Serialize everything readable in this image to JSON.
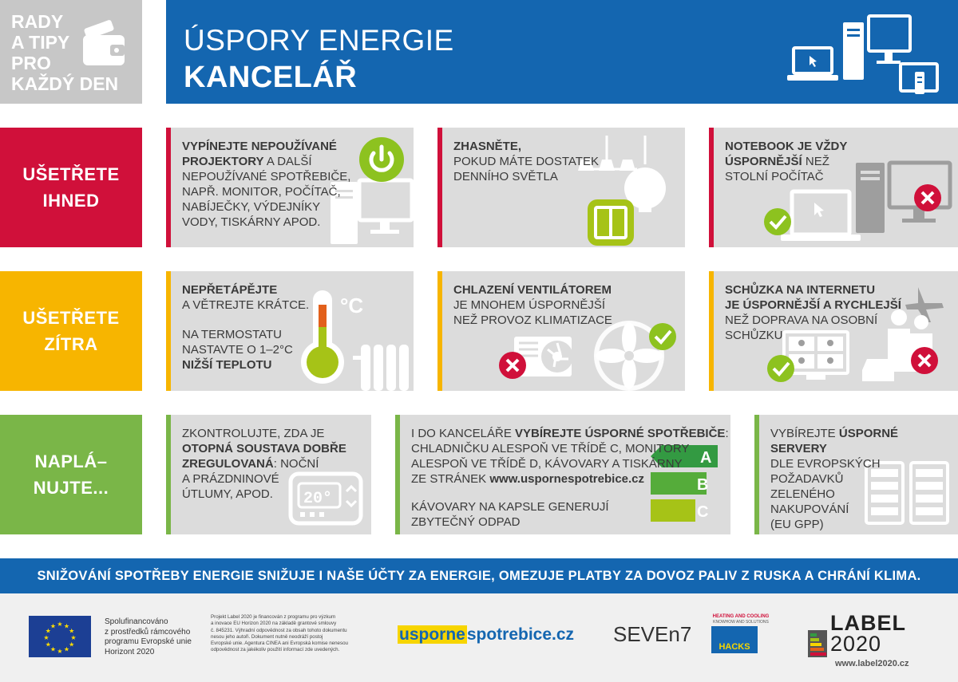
{
  "header": {
    "tagline": [
      "RADY",
      "A TIPY",
      "PRO",
      "KAŽDÝ DEN"
    ],
    "title_line1": "ÚSPORY ENERGIE",
    "title_line2": "KANCELÁŘ"
  },
  "rows": [
    {
      "label_line1": "UŠETŘETE",
      "label_line2": "IHNED"
    },
    {
      "label_line1": "UŠETŘETE",
      "label_line2": "ZÍTRA"
    },
    {
      "label_line1": "NAPLÁ–",
      "label_line2": "NUJTE..."
    }
  ],
  "cards": {
    "c1": {
      "bold1": "VYPÍNEJTE NEPOUŽÍVANÉ",
      "bold2": "PROJEKTORY",
      "rest2": " A DALŠÍ",
      "l3": "NEPOUŽÍVANÉ SPOTŘEBIČE,",
      "l4": "NAPŘ. MONITOR, POČÍTAČ,",
      "l5": "NABÍJEČKY, VÝDEJNÍKY",
      "l6": "VODY, TISKÁRNY APOD."
    },
    "c2": {
      "bold1": "ZHASNĚTE,",
      "l2": "POKUD MÁTE DOSTATEK",
      "l3": "DENNÍHO SVĚTLA"
    },
    "c3": {
      "bold1": "NOTEBOOK JE VŽDY",
      "bold2": "ÚSPORNĚJŠÍ",
      "rest2": " NEŽ",
      "l3": "STOLNÍ POČÍTAČ"
    },
    "c4": {
      "bold1": "NEPŘETÁPĚJTE",
      "l2": "A VĚTREJTE KRÁTCE.",
      "l3": "NA TERMOSTATU",
      "l4": "NASTAVTE O 1–2°C",
      "bold5": "NIŽŠÍ TEPLOTU",
      "unit": "°C"
    },
    "c5": {
      "bold1": "CHLAZENÍ VENTILÁTOREM",
      "l2": "JE MNOHEM ÚSPORNĚJŠÍ",
      "l3": "NEŽ PROVOZ KLIMATIZACE"
    },
    "c6": {
      "bold1": "SCHŮZKA NA INTERNETU",
      "bold2": "JE ÚSPORNĚJŠÍ A RYCHLEJŠÍ",
      "l3": "NEŽ DOPRAVA NA OSOBNÍ",
      "l4": "SCHŮZKU"
    },
    "c7": {
      "l1": "ZKONTROLUJTE, ZDA JE",
      "bold2": "OTOPNÁ SOUSTAVA DOBŘE",
      "bold3": "ZREGULOVANÁ",
      "rest3": ": NOČNÍ",
      "l4": "A PRÁZDNINOVÉ",
      "l5": "ÚTLUMY, APOD.",
      "display": "20°"
    },
    "c8": {
      "l1a": "I DO KANCELÁŘE ",
      "bold1": "VYBÍREJTE ÚSPORNÉ SPOTŘEBIČE",
      "l1b": ":",
      "l2": "CHLADNIČKU ALESPOŇ VE TŘÍDĚ C, MONITORY",
      "l3": "ALESPOŇ VE TŘÍDĚ D, KÁVOVARY A TISKÁRNY",
      "l4a": "ZE STRÁNEK ",
      "bold4": "www.uspornespotrebice.cz",
      "l5": "KÁVOVARY NA KAPSLE GENERUJÍ",
      "l6": "ZBYTEČNÝ ODPAD",
      "classes": [
        "A",
        "B",
        "C"
      ]
    },
    "c9": {
      "l1a": "VYBÍREJTE ",
      "bold1": "ÚSPORNÉ SERVERY",
      "l2": "DLE EVROPSKÝCH",
      "l3": "POŽADAVKŮ",
      "l4": "ZELENÉHO",
      "l5": "NAKUPOVÁNÍ",
      "l6": "(EU GPP)"
    }
  },
  "banner": "SNIŽOVÁNÍ SPOTŘEBY ENERGIE SNIŽUJE I NAŠE ÚČTY ZA ENERGIE, OMEZUJE PLATBY ZA DOVOZ PALIV Z RUSKA A CHRÁNÍ KLIMA.",
  "footer": {
    "funding": [
      "Spolufinancováno",
      "z prostředků rámcového",
      "programu Evropské unie",
      "Horizont 2020"
    ],
    "project": [
      "Projekt Label 2020 je financován z programu pro výzkum",
      "a inovace EU Horizon 2020 na základě grantové smlouvy",
      "č. 845231. Výhradní odpovědnost za obsah tohoto dokumentu",
      "nesou jeho autoři. Dokument nutně neodráží postoj",
      "Evropské unie. Agentura CINEA ani Evropská komise nenesou",
      "odpovědnost za jakékoliv použití informací zde uvedených."
    ],
    "logo_uspor_a": "usporne",
    "logo_uspor_b": "spotrebice.cz",
    "logo_seven": "SEVEn7",
    "hacks_top": "HEATING AND COOLING",
    "hacks_sub": "KNOWHOW AND SOLUTIONS",
    "hacks_name": "HACKS",
    "label_a": "LABEL",
    "label_b": "2020",
    "website": "www.label2020.cz"
  },
  "colors": {
    "red": "#d0103a",
    "yellow": "#f7b500",
    "green": "#7ab648",
    "blue": "#1466b0",
    "grey": "#c7c7c7",
    "card": "#dcdcdc",
    "lime": "#a6c317"
  }
}
